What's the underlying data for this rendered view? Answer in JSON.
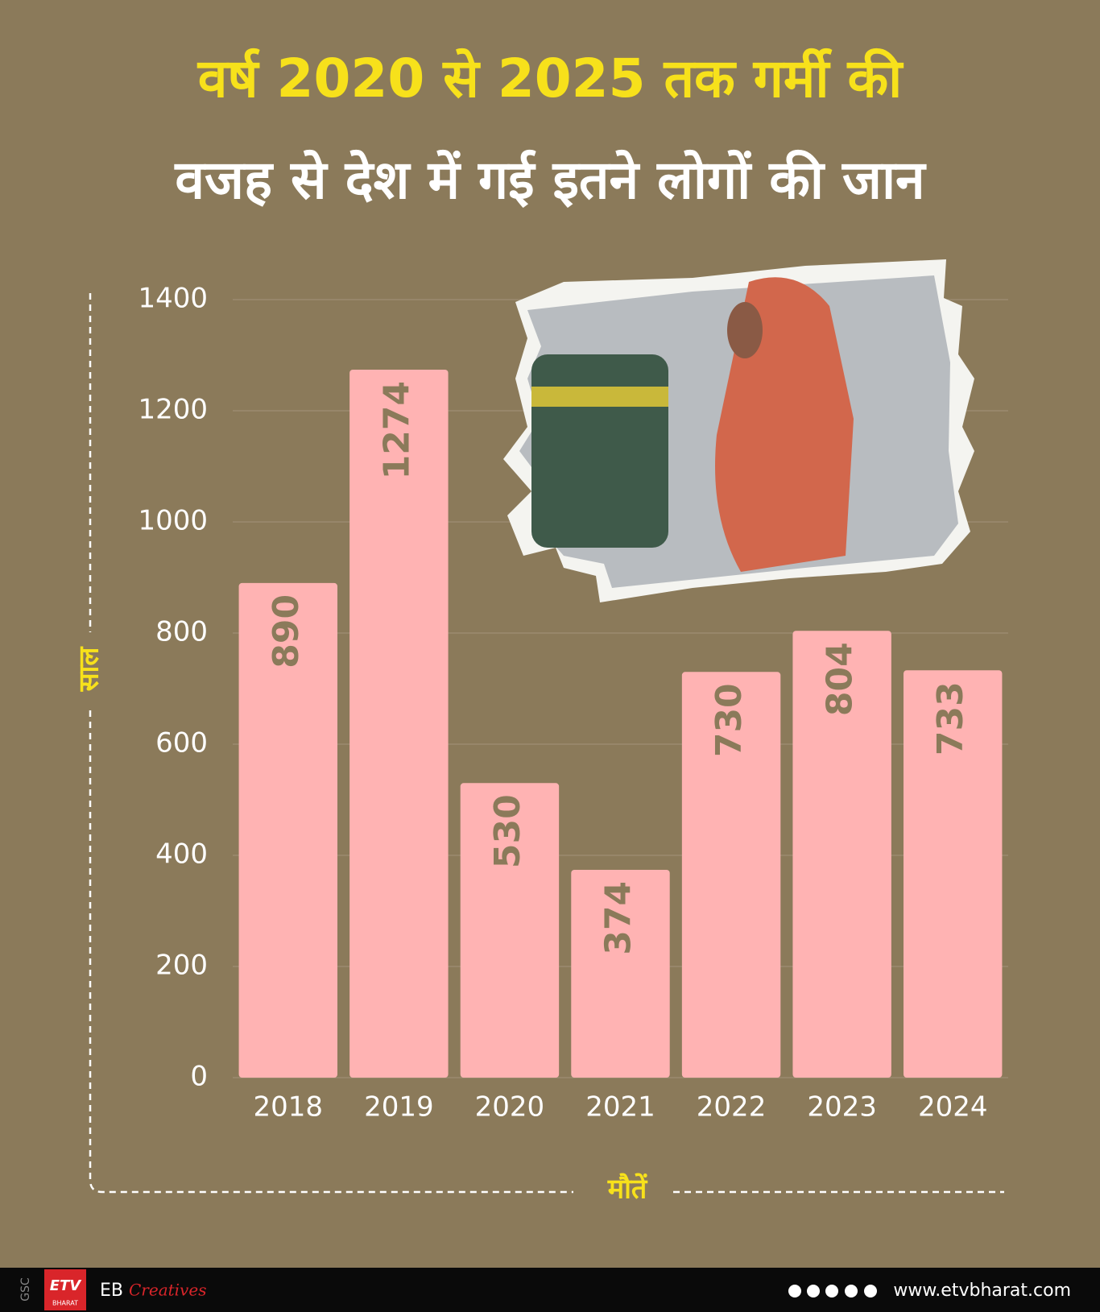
{
  "chart_data": {
    "type": "bar",
    "title": [
      "वर्ष 2020 से 2025 तक गर्मी की",
      "वजह से देश में गई इतने लोगों की जान"
    ],
    "x_label": "मौतें",
    "y_label": "साल",
    "categories": [
      "2018",
      "2019",
      "2020",
      "2021",
      "2022",
      "2023",
      "2024"
    ],
    "values": [
      890,
      1274,
      530,
      374,
      730,
      804,
      733
    ],
    "color": "#ffb3b3",
    "ylim": [
      0,
      1400
    ],
    "yticks": [
      0,
      200,
      400,
      600,
      800,
      1000,
      1200,
      1400
    ],
    "grid": true
  },
  "footer": {
    "left": "GSC",
    "logo": "ETV",
    "logo_sub": "BHARAT",
    "brand": "EB",
    "brand_script": "Creatives",
    "site": "www.etvbharat.com"
  }
}
